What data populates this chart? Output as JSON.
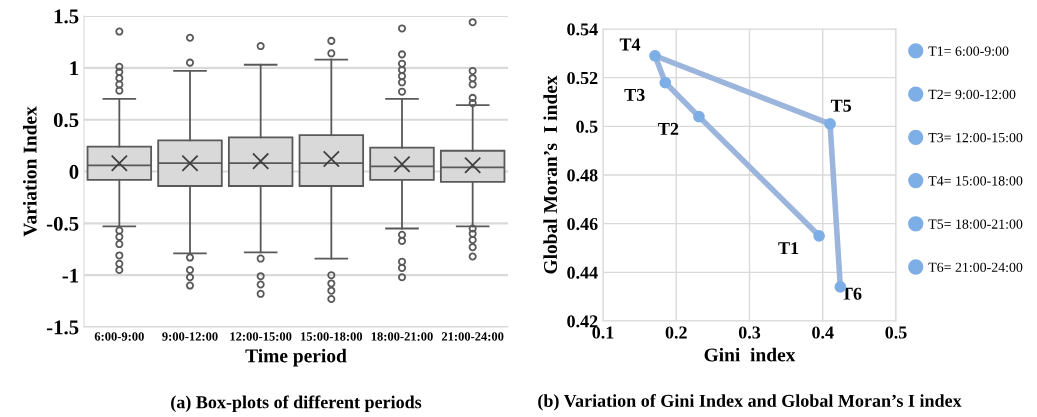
{
  "chart_data": [
    {
      "type": "box",
      "title": "(a) Box-plots of different periods",
      "xlabel": "Time period",
      "ylabel": "Variation Index",
      "categories": [
        "6:00-9:00",
        "9:00-12:00",
        "12:00-15:00",
        "15:00-18:00",
        "18:00-21:00",
        "21:00-24:00"
      ],
      "color": "#d9d9d9",
      "boxes": [
        {
          "low": -0.53,
          "q1": -0.08,
          "median": 0.06,
          "q3": 0.24,
          "high": 0.7,
          "mean": 0.08,
          "outliers": [
            0.78,
            0.84,
            0.9,
            0.96,
            1.01,
            1.35,
            -0.57,
            -0.63,
            -0.7,
            -0.81,
            -0.89,
            -0.95
          ]
        },
        {
          "low": -0.79,
          "q1": -0.14,
          "median": 0.08,
          "q3": 0.3,
          "high": 0.97,
          "mean": 0.08,
          "outliers": [
            1.05,
            1.29,
            -0.83,
            -0.95,
            -1.02,
            -1.1
          ]
        },
        {
          "low": -0.78,
          "q1": -0.14,
          "median": 0.08,
          "q3": 0.33,
          "high": 1.03,
          "mean": 0.1,
          "outliers": [
            1.21,
            -0.84,
            -1.01,
            -1.09,
            -1.18
          ]
        },
        {
          "low": -0.84,
          "q1": -0.14,
          "median": 0.08,
          "q3": 0.35,
          "high": 1.08,
          "mean": 0.12,
          "outliers": [
            1.14,
            1.26,
            -1.0,
            -1.08,
            -1.15,
            -1.23
          ]
        },
        {
          "low": -0.55,
          "q1": -0.08,
          "median": 0.05,
          "q3": 0.23,
          "high": 0.7,
          "mean": 0.07,
          "outliers": [
            0.77,
            0.86,
            0.92,
            0.98,
            1.04,
            1.13,
            1.38,
            -0.61,
            -0.67,
            -0.87,
            -0.93,
            -1.02
          ]
        },
        {
          "low": -0.53,
          "q1": -0.1,
          "median": 0.04,
          "q3": 0.2,
          "high": 0.64,
          "mean": 0.06,
          "outliers": [
            0.66,
            0.71,
            0.84,
            0.9,
            0.97,
            1.44,
            -0.55,
            -0.6,
            -0.66,
            -0.73,
            -0.82
          ]
        }
      ],
      "ylim": [
        -1.5,
        1.5
      ],
      "yticks": [
        1.5,
        1,
        0.5,
        0,
        -0.5,
        -1,
        -1.5
      ],
      "grid": "y"
    },
    {
      "type": "line",
      "title": "(b) Variation of Gini Index and Global Moran’s I index",
      "xlabel": "Gini  index",
      "ylabel": "Global Moran’s  I index",
      "xlim": [
        0.1,
        0.5
      ],
      "xticks": [
        0.1,
        0.2,
        0.3,
        0.4,
        0.5
      ],
      "ylim": [
        0.42,
        0.54
      ],
      "yticks": [
        0.42,
        0.44,
        0.46,
        0.48,
        0.5,
        0.52,
        0.54
      ],
      "grid": true,
      "legend": "right",
      "series": [
        {
          "type": "line",
          "x": [
            0.395,
            0.231,
            0.185,
            0.171,
            0.41,
            0.424
          ],
          "values": [
            0.455,
            0.504,
            0.518,
            0.529,
            0.501,
            0.434
          ],
          "color": "#9bb5dd"
        },
        {
          "type": "scatter",
          "name": "T1= 6:00-9:00",
          "color": "#7eaee6",
          "x": [
            0.395
          ],
          "values": [
            0.455
          ],
          "marker": "circle"
        },
        {
          "type": "scatter",
          "name": "T2= 9:00-12:00",
          "color": "#7eaee6",
          "x": [
            0.231
          ],
          "values": [
            0.504
          ],
          "marker": "circle"
        },
        {
          "type": "scatter",
          "name": "T3= 12:00-15:00",
          "color": "#7eaee6",
          "x": [
            0.185
          ],
          "values": [
            0.518
          ],
          "marker": "circle"
        },
        {
          "type": "scatter",
          "name": "T4= 15:00-18:00",
          "color": "#7eaee6",
          "x": [
            0.171
          ],
          "values": [
            0.529
          ],
          "marker": "circle"
        },
        {
          "type": "scatter",
          "name": "T5= 18:00-21:00",
          "color": "#7eaee6",
          "x": [
            0.41
          ],
          "values": [
            0.501
          ],
          "marker": "circle"
        },
        {
          "type": "scatter",
          "name": "T6= 21:00-24:00",
          "color": "#7eaee6",
          "x": [
            0.424
          ],
          "values": [
            0.434
          ],
          "marker": "circle"
        }
      ],
      "annotations": [
        {
          "text": "T1",
          "x": 0.395,
          "y": 0.455
        },
        {
          "text": "T2",
          "x": 0.231,
          "y": 0.504
        },
        {
          "text": "T3",
          "x": 0.185,
          "y": 0.518
        },
        {
          "text": "T4",
          "x": 0.171,
          "y": 0.529
        },
        {
          "text": "T5",
          "x": 0.41,
          "y": 0.501
        },
        {
          "text": "T6",
          "x": 0.424,
          "y": 0.434
        }
      ]
    }
  ]
}
